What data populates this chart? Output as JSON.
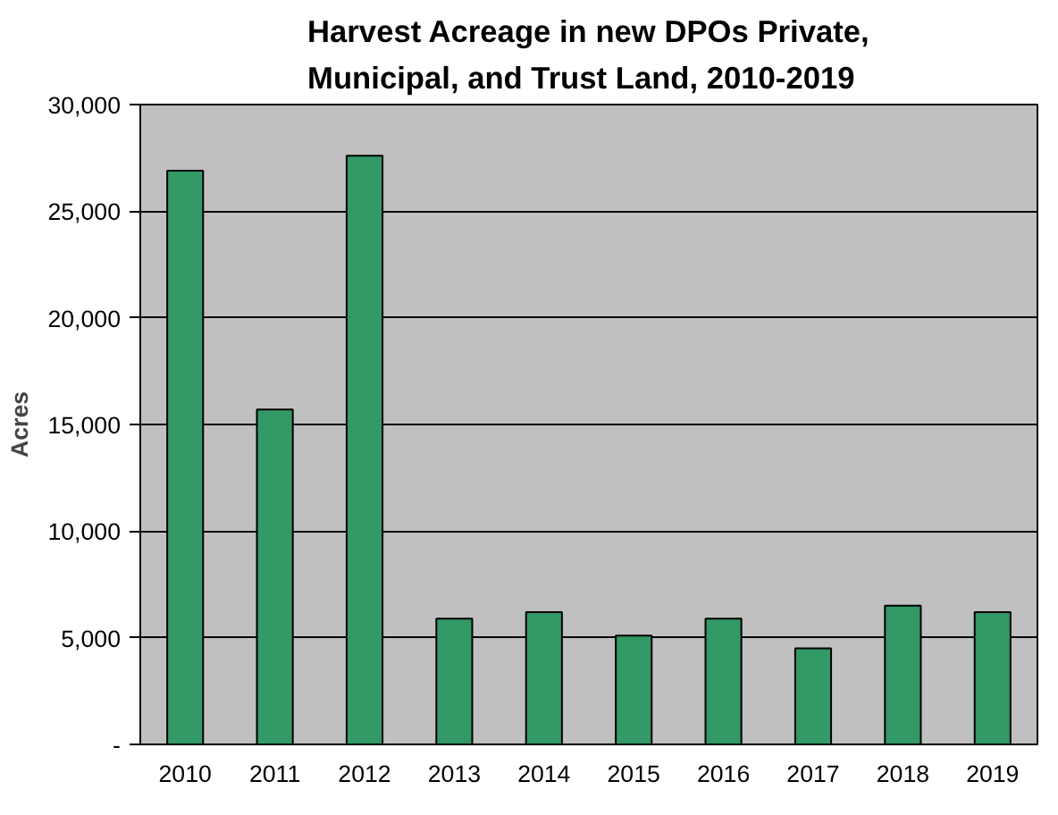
{
  "chart_data": {
    "type": "bar",
    "title": "Harvest Acreage in new DPOs Private,\nMunicipal, and Trust Land, 2010-2019",
    "ylabel": "Acres",
    "categories": [
      "2010",
      "2011",
      "2012",
      "2013",
      "2014",
      "2015",
      "2016",
      "2017",
      "2018",
      "2019"
    ],
    "values": [
      26900,
      15700,
      27600,
      5900,
      6200,
      5100,
      5900,
      4500,
      6500,
      6200
    ],
    "color": "#339966",
    "ylim": [
      0,
      30000
    ],
    "yticks": [
      {
        "value": 0,
        "label": "-"
      },
      {
        "value": 5000,
        "label": "5,000"
      },
      {
        "value": 10000,
        "label": "10,000"
      },
      {
        "value": 15000,
        "label": "15,000"
      },
      {
        "value": 20000,
        "label": "20,000"
      },
      {
        "value": 25000,
        "label": "25,000"
      },
      {
        "value": 30000,
        "label": "30,000"
      }
    ],
    "grid": "y"
  }
}
